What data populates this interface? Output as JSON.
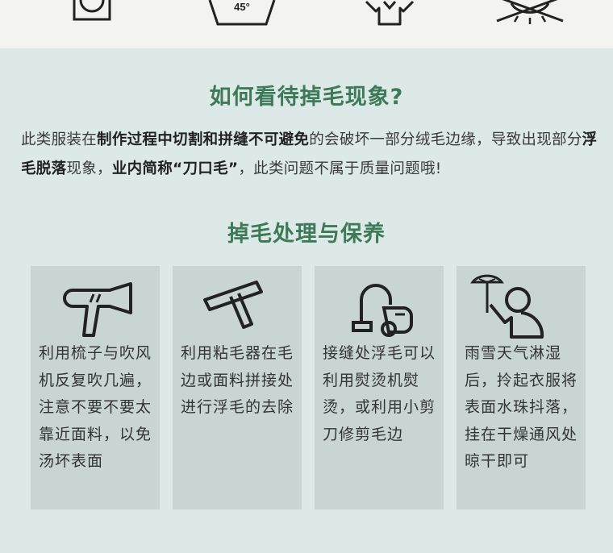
{
  "care_icons": {
    "items": [
      {
        "name": "tumble-dry-icon",
        "label": ""
      },
      {
        "name": "wash-temperature-icon",
        "label": "45°"
      },
      {
        "name": "shirt-icon",
        "label": ""
      },
      {
        "name": "do-not-dry-icon",
        "label": ""
      }
    ]
  },
  "section1": {
    "title": "如何看待掉毛现象?",
    "parts": [
      {
        "text": "此类服装在",
        "bold": false
      },
      {
        "text": "制作过程中切割和拼缝不可避免",
        "bold": true
      },
      {
        "text": "的会破坏一部分绒毛边缘，导致出现部分",
        "bold": false
      },
      {
        "text": "浮毛脱落",
        "bold": true
      },
      {
        "text": "现象，",
        "bold": false
      },
      {
        "text": "业内简称“刀口毛”",
        "bold": true
      },
      {
        "text": "，此类问题不属于质量问题哦!",
        "bold": false
      }
    ]
  },
  "section2": {
    "title": "掉毛处理与保养",
    "cards": [
      {
        "icon": "hair-dryer-icon",
        "text": "利用梳子与吹风机反复吹几遍，注意不要不要太靠近面料，以免汤坏表面"
      },
      {
        "icon": "lint-roller-icon",
        "text": "利用粘毛器在毛边或面料拼接处进行浮毛的去除"
      },
      {
        "icon": "steam-iron-icon",
        "text": "接缝处浮毛可以利用熨烫机熨烫，或利用小剪刀修剪毛边"
      },
      {
        "icon": "umbrella-person-icon",
        "text": "雨雪天气淋湿后，拎起衣服将表面水珠抖落，挂在干燥通风处晾干即可"
      }
    ]
  },
  "colors": {
    "background": "#dce9e6",
    "top_strip": "#f3f3f1",
    "title_green": "#3e7a5a",
    "card_bg": "#c8d5d2"
  }
}
